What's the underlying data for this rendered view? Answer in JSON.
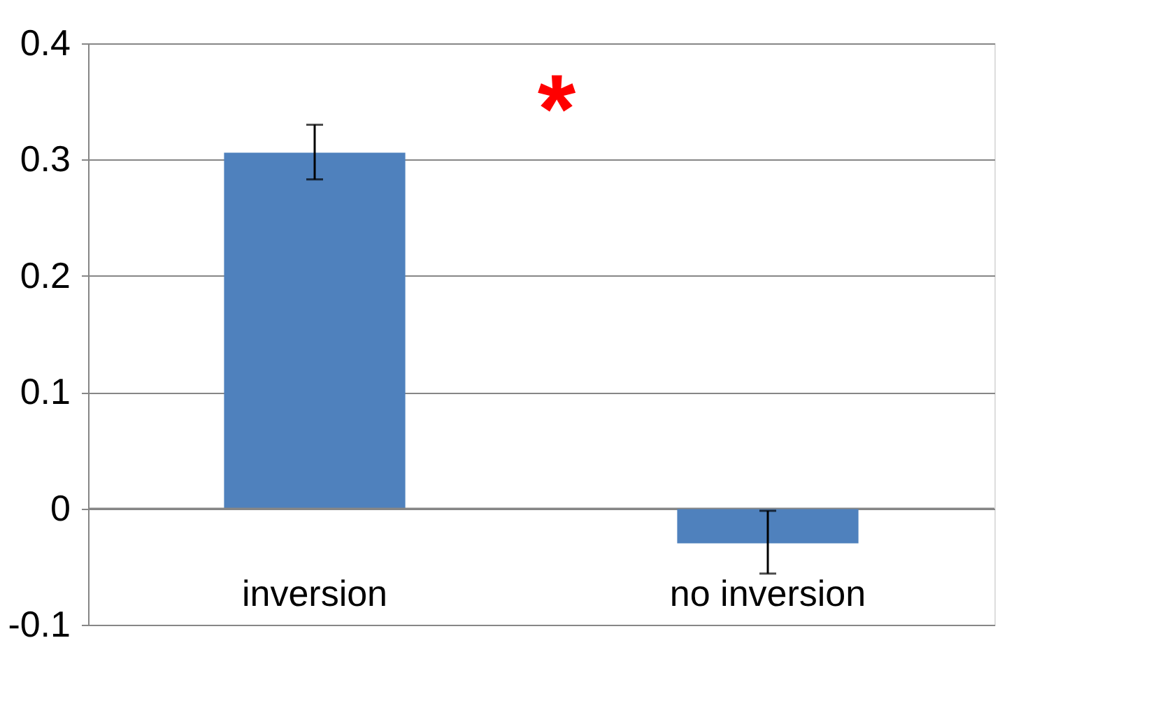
{
  "chart_data": {
    "type": "bar",
    "categories": [
      "inversion",
      "no inversion"
    ],
    "values": [
      0.306,
      -0.03
    ],
    "errors": [
      [
        0.283,
        0.33
      ],
      [
        -0.056,
        -0.002
      ]
    ],
    "color": "#4f81bd",
    "ylim": [
      -0.1,
      0.4
    ],
    "yticks": [
      -0.1,
      0,
      0.1,
      0.2,
      0.3,
      0.4
    ],
    "grid": "y",
    "annotations": [
      "*"
    ]
  }
}
